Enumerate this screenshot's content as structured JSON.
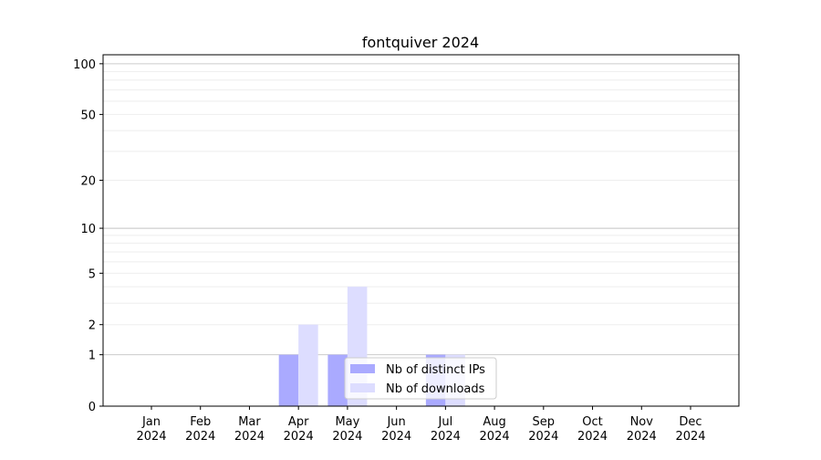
{
  "chart_data": {
    "type": "bar",
    "title": "fontquiver 2024",
    "xlabel": "",
    "ylabel": "",
    "yscale": "log(1+y)",
    "ylim": [
      0,
      113
    ],
    "yticks": [
      0,
      1,
      2,
      5,
      10,
      20,
      50,
      100
    ],
    "grid": true,
    "legend_position": "lower-center",
    "categories": [
      "Jan\n2024",
      "Feb\n2024",
      "Mar\n2024",
      "Apr\n2024",
      "May\n2024",
      "Jun\n2024",
      "Jul\n2024",
      "Aug\n2024",
      "Sep\n2024",
      "Oct\n2024",
      "Nov\n2024",
      "Dec\n2024"
    ],
    "series": [
      {
        "name": "Nb of distinct IPs",
        "color": "#aaaaff",
        "values": [
          0,
          0,
          0,
          1,
          1,
          0,
          1,
          0,
          0,
          0,
          0,
          0
        ]
      },
      {
        "name": "Nb of downloads",
        "color": "#ddddff",
        "values": [
          0,
          0,
          0,
          2,
          4,
          0,
          1,
          0,
          0,
          0,
          0,
          0
        ]
      }
    ]
  }
}
